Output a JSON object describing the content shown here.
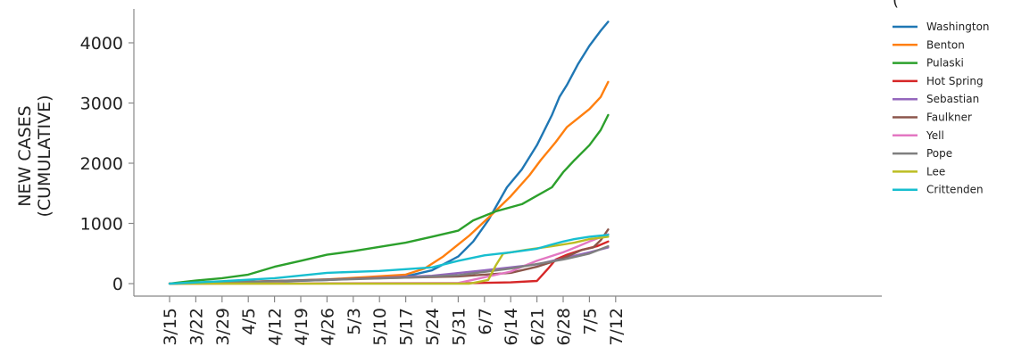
{
  "top_note": "(",
  "chart_data": {
    "type": "line",
    "ylabel_line1": "NEW CASES",
    "ylabel_line2": "(CUMULATIVE)",
    "ylim": [
      -150,
      4500
    ],
    "yticks": [
      0,
      1000,
      2000,
      3000,
      4000
    ],
    "ytick_labels": [
      "0",
      "1000",
      "2000",
      "3000",
      "4000"
    ],
    "x_start": "3/15",
    "xticks": [
      "3/15",
      "3/22",
      "3/29",
      "4/5",
      "4/12",
      "4/19",
      "4/26",
      "5/3",
      "5/10",
      "5/17",
      "5/24",
      "5/31",
      "6/7",
      "6/14",
      "6/21",
      "6/28",
      "7/5",
      "7/12"
    ],
    "xlim": [
      "3/10",
      "7/15"
    ],
    "grid": false,
    "legend_position": "right",
    "series": [
      {
        "name": "Washington",
        "color": "#1f77b4",
        "x": [
          "3/15",
          "4/5",
          "4/26",
          "5/17",
          "5/24",
          "5/31",
          "6/4",
          "6/8",
          "6/13",
          "6/17",
          "6/21",
          "6/25",
          "6/27",
          "6/29",
          "7/2",
          "7/5",
          "7/8",
          "7/10"
        ],
        "y": [
          0,
          20,
          60,
          120,
          220,
          450,
          700,
          1050,
          1600,
          1900,
          2300,
          2800,
          3100,
          3300,
          3650,
          3950,
          4200,
          4350
        ]
      },
      {
        "name": "Benton",
        "color": "#ff7f0e",
        "x": [
          "3/15",
          "4/5",
          "4/26",
          "5/17",
          "5/22",
          "5/27",
          "6/3",
          "6/9",
          "6/14",
          "6/19",
          "6/22",
          "6/26",
          "6/29",
          "7/2",
          "7/5",
          "7/8",
          "7/10"
        ],
        "y": [
          0,
          30,
          70,
          150,
          250,
          450,
          800,
          1150,
          1450,
          1800,
          2050,
          2350,
          2600,
          2750,
          2900,
          3100,
          3350
        ]
      },
      {
        "name": "Pulaski",
        "color": "#2ca02c",
        "x": [
          "3/15",
          "3/22",
          "3/29",
          "4/5",
          "4/12",
          "4/19",
          "4/26",
          "5/3",
          "5/10",
          "5/17",
          "5/24",
          "5/31",
          "6/4",
          "6/10",
          "6/17",
          "6/21",
          "6/25",
          "6/28",
          "7/1",
          "7/5",
          "7/8",
          "7/10"
        ],
        "y": [
          0,
          50,
          90,
          150,
          280,
          380,
          480,
          540,
          610,
          680,
          780,
          880,
          1050,
          1200,
          1320,
          1460,
          1600,
          1850,
          2050,
          2300,
          2550,
          2800
        ]
      },
      {
        "name": "Hot Spring",
        "color": "#d62728",
        "x": [
          "3/15",
          "5/31",
          "6/14",
          "6/21",
          "6/24",
          "6/26",
          "6/29",
          "7/3",
          "7/7",
          "7/10"
        ],
        "y": [
          0,
          5,
          20,
          45,
          250,
          400,
          480,
          560,
          620,
          700
        ]
      },
      {
        "name": "Sebastian",
        "color": "#9467bd",
        "x": [
          "3/15",
          "4/12",
          "5/3",
          "5/24",
          "6/7",
          "6/21",
          "7/5",
          "7/10"
        ],
        "y": [
          0,
          40,
          80,
          130,
          220,
          320,
          520,
          600
        ]
      },
      {
        "name": "Faulkner",
        "color": "#8c564b",
        "x": [
          "3/15",
          "4/5",
          "5/3",
          "5/31",
          "6/14",
          "6/21",
          "6/28",
          "7/3",
          "7/6",
          "7/8",
          "7/10"
        ],
        "y": [
          0,
          30,
          80,
          120,
          180,
          280,
          420,
          560,
          600,
          720,
          900
        ]
      },
      {
        "name": "Yell",
        "color": "#e377c2",
        "x": [
          "3/15",
          "5/31",
          "6/14",
          "6/17",
          "6/21",
          "6/28",
          "7/2",
          "7/5",
          "7/10"
        ],
        "y": [
          0,
          10,
          200,
          280,
          380,
          520,
          620,
          700,
          820
        ]
      },
      {
        "name": "Pope",
        "color": "#7f7f7f",
        "x": [
          "3/15",
          "4/5",
          "4/26",
          "5/17",
          "5/31",
          "6/14",
          "6/28",
          "7/5",
          "7/10"
        ],
        "y": [
          0,
          30,
          60,
          100,
          140,
          250,
          400,
          500,
          620
        ]
      },
      {
        "name": "Lee",
        "color": "#bcbd22",
        "x": [
          "3/15",
          "6/3",
          "6/8",
          "6/10",
          "6/12",
          "6/18",
          "6/25",
          "7/1",
          "7/5",
          "7/10"
        ],
        "y": [
          0,
          0,
          60,
          300,
          500,
          560,
          620,
          680,
          740,
          780
        ]
      },
      {
        "name": "Crittenden",
        "color": "#17becf",
        "x": [
          "3/15",
          "3/29",
          "4/12",
          "4/26",
          "5/10",
          "5/24",
          "5/31",
          "6/7",
          "6/14",
          "6/21",
          "6/25",
          "6/28",
          "7/1",
          "7/5",
          "7/10"
        ],
        "y": [
          0,
          40,
          90,
          180,
          210,
          270,
          380,
          470,
          520,
          580,
          650,
          700,
          740,
          780,
          810
        ]
      }
    ]
  }
}
